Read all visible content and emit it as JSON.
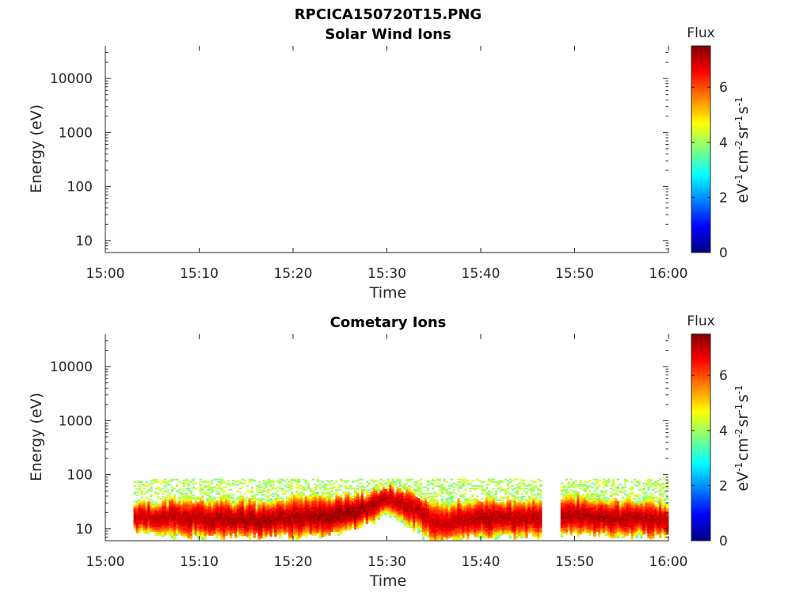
{
  "figure_title": "RPCICA150720T15.PNG",
  "chart_data": [
    {
      "type": "heatmap",
      "title": "Solar Wind Ions",
      "xlabel": "Time",
      "ylabel": "Energy (eV)",
      "xticks": [
        "15:00",
        "15:10",
        "15:20",
        "15:30",
        "15:40",
        "15:50",
        "16:00"
      ],
      "xlim": [
        "15:00",
        "16:00"
      ],
      "ylim": [
        6,
        40000
      ],
      "yscale": "log",
      "yticks": [
        10,
        100,
        1000,
        10000
      ],
      "ytick_labels": [
        "10",
        "100",
        "1000",
        "10000"
      ],
      "colorbar": {
        "title": "Flux",
        "label": "eV-1cm-2sr-1s-1",
        "label_parts": [
          [
            "eV",
            "-1"
          ],
          [
            "cm",
            "-2"
          ],
          [
            "sr",
            "-1"
          ],
          [
            "s",
            "-1"
          ]
        ],
        "range": [
          0,
          7.5
        ],
        "ticks": [
          0,
          2,
          4,
          6
        ],
        "tick_labels": [
          "0",
          "2",
          "4",
          "6"
        ],
        "colormap": "jet"
      },
      "cells": []
    },
    {
      "type": "heatmap",
      "title": "Cometary Ions",
      "xlabel": "Time",
      "ylabel": "Energy (eV)",
      "xticks": [
        "15:00",
        "15:10",
        "15:20",
        "15:30",
        "15:40",
        "15:50",
        "16:00"
      ],
      "xlim": [
        "15:00",
        "16:00"
      ],
      "ylim": [
        6,
        40000
      ],
      "yscale": "log",
      "yticks": [
        10,
        100,
        1000,
        10000
      ],
      "ytick_labels": [
        "10",
        "100",
        "1000",
        "10000"
      ],
      "colorbar": {
        "title": "Flux",
        "label": "eV-1cm-2sr-1s-1",
        "label_parts": [
          [
            "eV",
            "-1"
          ],
          [
            "cm",
            "-2"
          ],
          [
            "sr",
            "-1"
          ],
          [
            "s",
            "-1"
          ]
        ],
        "range": [
          0,
          7.5
        ],
        "ticks": [
          0,
          2,
          4,
          6
        ],
        "tick_labels": [
          "0",
          "2",
          "4",
          "6"
        ],
        "colormap": "jet"
      },
      "data_start": "15:03",
      "data_end": "16:00",
      "gap": [
        "15:46:30",
        "15:48:30"
      ],
      "energy_profile": [
        {
          "time": "15:03",
          "e_low": 9,
          "e_high": 30,
          "e_peak": 16,
          "peak_flux": 7.0
        },
        {
          "time": "15:07",
          "e_low": 7,
          "e_high": 35,
          "e_peak": 16,
          "peak_flux": 7.0
        },
        {
          "time": "15:12",
          "e_low": 7,
          "e_high": 35,
          "e_peak": 15,
          "peak_flux": 7.1
        },
        {
          "time": "15:17",
          "e_low": 7,
          "e_high": 32,
          "e_peak": 14,
          "peak_flux": 7.2
        },
        {
          "time": "15:20",
          "e_low": 7,
          "e_high": 40,
          "e_peak": 16,
          "peak_flux": 7.1
        },
        {
          "time": "15:25",
          "e_low": 8,
          "e_high": 40,
          "e_peak": 18,
          "peak_flux": 7.3
        },
        {
          "time": "15:28",
          "e_low": 12,
          "e_high": 45,
          "e_peak": 24,
          "peak_flux": 7.2
        },
        {
          "time": "15:30",
          "e_low": 18,
          "e_high": 55,
          "e_peak": 35,
          "peak_flux": 7.0
        },
        {
          "time": "15:33",
          "e_low": 8,
          "e_high": 45,
          "e_peak": 22,
          "peak_flux": 7.0
        },
        {
          "time": "15:35",
          "e_low": 6,
          "e_high": 30,
          "e_peak": 12,
          "peak_flux": 6.9
        },
        {
          "time": "15:40",
          "e_low": 7,
          "e_high": 35,
          "e_peak": 16,
          "peak_flux": 7.1
        },
        {
          "time": "15:45",
          "e_low": 7,
          "e_high": 35,
          "e_peak": 15,
          "peak_flux": 7.0
        },
        {
          "time": "15:50",
          "e_low": 8,
          "e_high": 38,
          "e_peak": 17,
          "peak_flux": 7.1
        },
        {
          "time": "15:55",
          "e_low": 7,
          "e_high": 35,
          "e_peak": 15,
          "peak_flux": 7.1
        },
        {
          "time": "16:00",
          "e_low": 7,
          "e_high": 30,
          "e_peak": 14,
          "peak_flux": 7.0
        }
      ]
    }
  ]
}
